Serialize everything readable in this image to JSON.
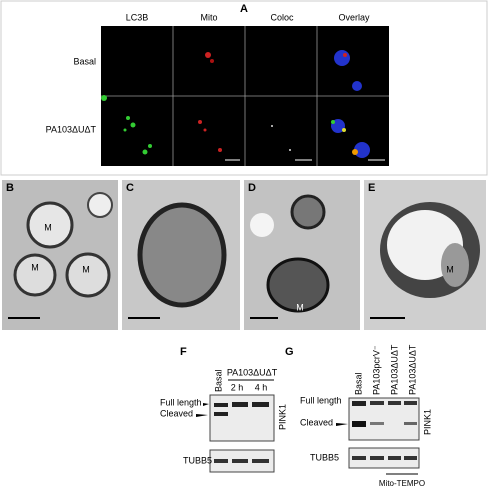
{
  "panel_a": {
    "label": "A",
    "columns": [
      "LC3B",
      "Mito",
      "Coloc",
      "Overlay"
    ],
    "rows": [
      "Basal",
      "PA103ΔUΔT"
    ]
  },
  "panels_em": [
    {
      "label": "B",
      "annotations": [
        "M",
        "M",
        "M"
      ]
    },
    {
      "label": "C",
      "annotations": []
    },
    {
      "label": "D",
      "annotations": [
        "M"
      ]
    },
    {
      "label": "E",
      "annotations": [
        "M"
      ]
    }
  ],
  "panel_f": {
    "label": "F",
    "lanes": [
      "Basal"
    ],
    "group": "PA103ΔUΔT",
    "timepoints": [
      "2 h",
      "4 h"
    ],
    "bands": [
      "Full length",
      "Cleaved"
    ],
    "protein": "PINK1",
    "loading": "TUBB5"
  },
  "panel_g": {
    "label": "G",
    "lanes": [
      "Basal",
      "PA103pcrV⁻",
      "PA103ΔUΔT",
      "PA103ΔUΔT"
    ],
    "bands": [
      "Full length",
      "Cleaved"
    ],
    "protein": "PINK1",
    "loading": "TUBB5",
    "treatment": "Mito-TEMPO"
  }
}
